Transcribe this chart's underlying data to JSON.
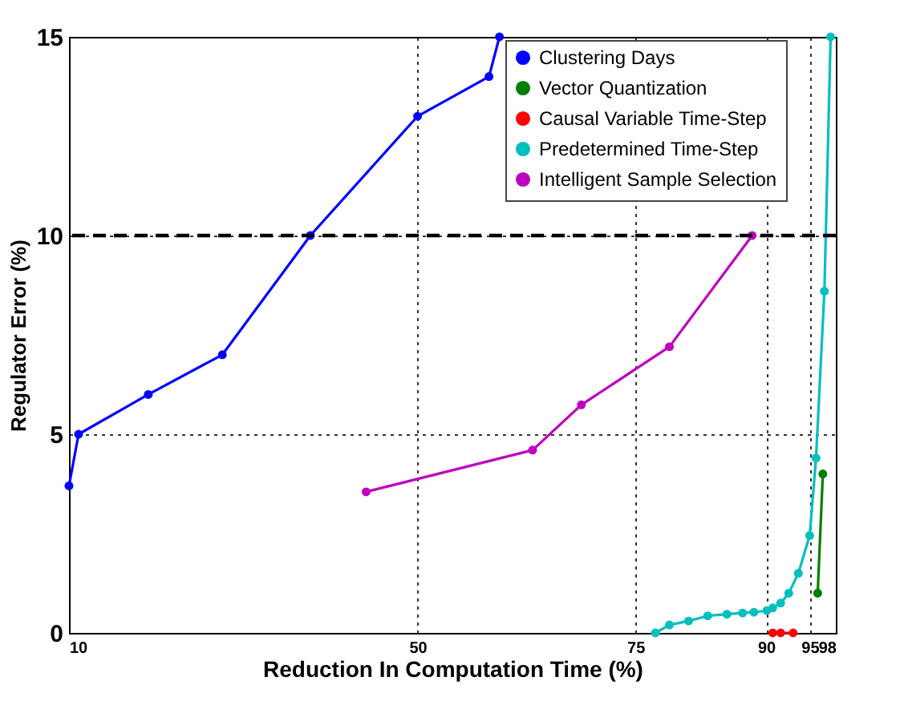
{
  "chart_data": {
    "type": "line",
    "xlabel": "Reduction In Computation Time (%)",
    "ylabel": "Regulator Error (%)",
    "xlim": [
      10,
      98
    ],
    "xticks": [
      10,
      50,
      75,
      90,
      95,
      98
    ],
    "ylim": [
      0,
      15
    ],
    "yticks": [
      0,
      5,
      10,
      15
    ],
    "grid": true,
    "legend": "top right",
    "marker": "circle",
    "line_style": "solid",
    "series": [
      {
        "name": "Clustering Days",
        "color": "#0000ff",
        "x": [
          10,
          11.1,
          19.1,
          27.6,
          37.7,
          50,
          58.2,
          59.4
        ],
        "values": [
          3.7,
          5,
          6,
          7,
          10,
          13,
          14,
          15
        ]
      },
      {
        "name": "Vector Quantization",
        "color": "#007f00",
        "x": [
          95.92,
          96.51
        ],
        "values": [
          1.0,
          4.0
        ]
      },
      {
        "name": "Causal Variable Time-Step",
        "color": "#ff0000",
        "x": [
          90.76,
          91.67,
          93.1
        ],
        "values": [
          0,
          0,
          0
        ]
      },
      {
        "name": "Predetermined Time-Step",
        "color": "#00bfbf",
        "x": [
          77.3,
          78.9,
          81.1,
          83.3,
          85.5,
          87.3,
          88.6,
          90.08,
          90.76,
          91.67,
          92.6,
          93.7,
          95.0,
          95.73,
          96.69,
          97.4
        ],
        "values": [
          0,
          0.2,
          0.3,
          0.43,
          0.47,
          0.5,
          0.52,
          0.56,
          0.63,
          0.75,
          1.0,
          1.5,
          2.45,
          4.4,
          8.6,
          15
        ]
      },
      {
        "name": "Intelligent Sample Selection",
        "color": "#bf00bf",
        "x": [
          44.1,
          63.2,
          68.8,
          78.9,
          88.4
        ],
        "values": [
          3.55,
          4.6,
          5.74,
          7.2,
          10
        ]
      }
    ],
    "ref_lines": [
      {
        "axis": "y",
        "value": 10,
        "color": "#000000",
        "line_style": "dashed"
      }
    ]
  }
}
